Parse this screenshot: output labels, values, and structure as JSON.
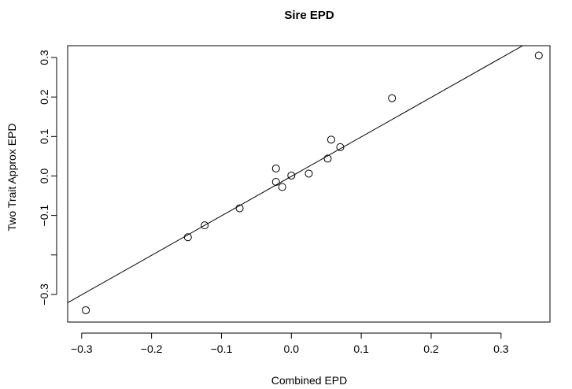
{
  "chart_data": {
    "type": "scatter",
    "title": "Sire EPD",
    "xlabel": "Combined EPD",
    "ylabel": "Two Trait Approx EPD",
    "xlim": [
      -0.32,
      0.37
    ],
    "ylim": [
      -0.37,
      0.33
    ],
    "x_ticks": [
      -0.3,
      -0.2,
      -0.1,
      0.0,
      0.1,
      0.2,
      0.3
    ],
    "x_tick_labels": [
      "−0.3",
      "−0.2",
      "−0.1",
      "0.0",
      "0.1",
      "0.2",
      "0.3"
    ],
    "y_ticks": [
      -0.3,
      -0.2,
      -0.1,
      0.0,
      0.1,
      0.2,
      0.3
    ],
    "y_tick_labels": [
      "−0.3",
      "",
      "−0.1",
      "0.0",
      "0.1",
      "0.2",
      "0.3"
    ],
    "points": [
      {
        "x": -0.294,
        "y": -0.34
      },
      {
        "x": -0.148,
        "y": -0.155
      },
      {
        "x": -0.124,
        "y": -0.125
      },
      {
        "x": -0.074,
        "y": -0.082
      },
      {
        "x": -0.022,
        "y": -0.015
      },
      {
        "x": -0.022,
        "y": 0.019
      },
      {
        "x": -0.013,
        "y": -0.028
      },
      {
        "x": 0.0,
        "y": 0.001
      },
      {
        "x": 0.025,
        "y": 0.006
      },
      {
        "x": 0.052,
        "y": 0.044
      },
      {
        "x": 0.057,
        "y": 0.092
      },
      {
        "x": 0.07,
        "y": 0.073
      },
      {
        "x": 0.144,
        "y": 0.197
      },
      {
        "x": 0.354,
        "y": 0.305
      }
    ],
    "fit_line": {
      "intercept": -0.001,
      "slope": 1.0
    },
    "marker": "open-circle",
    "grid": false,
    "legend": "none",
    "color": "#000000"
  }
}
